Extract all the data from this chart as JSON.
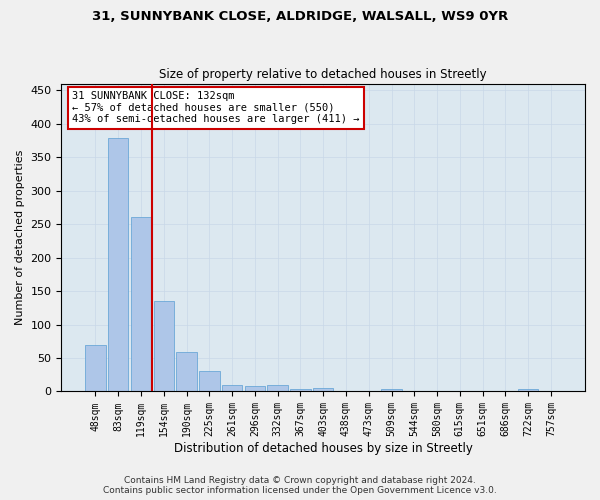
{
  "title_line1": "31, SUNNYBANK CLOSE, ALDRIDGE, WALSALL, WS9 0YR",
  "title_line2": "Size of property relative to detached houses in Streetly",
  "xlabel": "Distribution of detached houses by size in Streetly",
  "ylabel": "Number of detached properties",
  "footer": "Contains HM Land Registry data © Crown copyright and database right 2024.\nContains public sector information licensed under the Open Government Licence v3.0.",
  "bin_labels": [
    "48sqm",
    "83sqm",
    "119sqm",
    "154sqm",
    "190sqm",
    "225sqm",
    "261sqm",
    "296sqm",
    "332sqm",
    "367sqm",
    "403sqm",
    "438sqm",
    "473sqm",
    "509sqm",
    "544sqm",
    "580sqm",
    "615sqm",
    "651sqm",
    "686sqm",
    "722sqm",
    "757sqm"
  ],
  "bar_values": [
    70,
    378,
    261,
    135,
    59,
    30,
    10,
    8,
    10,
    3,
    5,
    0,
    0,
    4,
    0,
    0,
    0,
    0,
    0,
    4,
    0
  ],
  "bar_color": "#aec6e8",
  "bar_edge_color": "#5a9fd4",
  "annotation_line1": "31 SUNNYBANK CLOSE: 132sqm",
  "annotation_line2": "← 57% of detached houses are smaller (550)",
  "annotation_line3": "43% of semi-detached houses are larger (411) →",
  "annotation_box_color": "#ffffff",
  "annotation_box_edge_color": "#cc0000",
  "vline_x": 2.5,
  "vline_color": "#cc0000",
  "ylim": [
    0,
    460
  ],
  "yticks": [
    0,
    50,
    100,
    150,
    200,
    250,
    300,
    350,
    400,
    450
  ],
  "grid_color": "#c8d8e8",
  "plot_bg_color": "#dce8f0",
  "fig_bg_color": "#f0f0f0",
  "tick_fontsize": 7,
  "ylabel_fontsize": 8,
  "xlabel_fontsize": 8.5,
  "title1_fontsize": 9.5,
  "title2_fontsize": 8.5,
  "footer_fontsize": 6.5,
  "annot_fontsize": 7.5
}
